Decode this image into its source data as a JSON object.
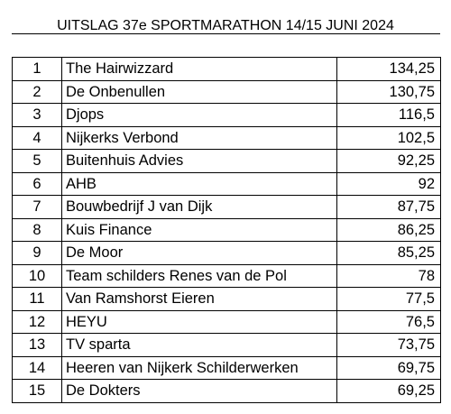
{
  "title": "UITSLAG 37e SPORTMARATHON 14/15 JUNI 2024",
  "results": [
    {
      "rank": "1",
      "team": "The Hairwizzard",
      "score": "134,25"
    },
    {
      "rank": "2",
      "team": "De Onbenullen",
      "score": "130,75"
    },
    {
      "rank": "3",
      "team": "Djops",
      "score": "116,5"
    },
    {
      "rank": "4",
      "team": "Nijkerks Verbond",
      "score": "102,5"
    },
    {
      "rank": "5",
      "team": "Buitenhuis Advies",
      "score": "92,25"
    },
    {
      "rank": "6",
      "team": "AHB",
      "score": "92"
    },
    {
      "rank": "7",
      "team": "Bouwbedrijf J van Dijk",
      "score": "87,75"
    },
    {
      "rank": "8",
      "team": "Kuis Finance",
      "score": "86,25"
    },
    {
      "rank": "9",
      "team": "De Moor",
      "score": "85,25"
    },
    {
      "rank": "10",
      "team": "Team schilders Renes van de Pol",
      "score": "78"
    },
    {
      "rank": "11",
      "team": "Van Ramshorst Eieren",
      "score": "77,5"
    },
    {
      "rank": "12",
      "team": "HEYU",
      "score": "76,5"
    },
    {
      "rank": "13",
      "team": "TV sparta",
      "score": "73,75"
    },
    {
      "rank": "14",
      "team": "Heeren van Nijkerk Schilderwerken",
      "score": "69,75"
    },
    {
      "rank": "15",
      "team": "De Dokters",
      "score": "69,25"
    }
  ]
}
